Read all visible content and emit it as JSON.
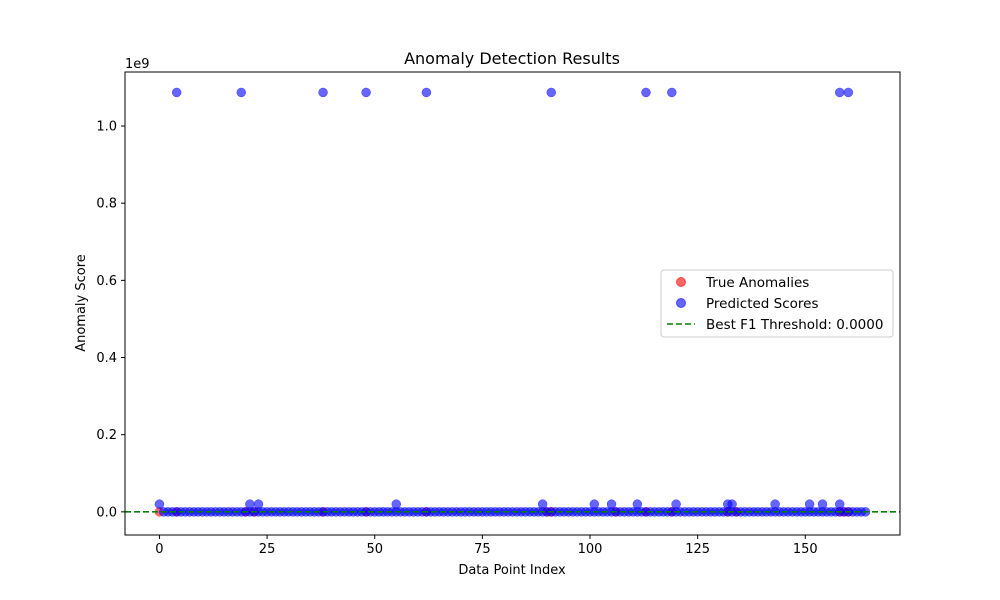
{
  "chart_data": {
    "type": "scatter",
    "title": "Anomaly Detection Results",
    "xlabel": "Data Point Index",
    "ylabel": "Anomaly Score",
    "y_offset_label": "1e9",
    "xlim": [
      -8,
      172
    ],
    "ylim": [
      -60000000,
      1140000000
    ],
    "x_ticks": [
      0,
      25,
      50,
      75,
      100,
      125,
      150
    ],
    "y_ticks": [
      0,
      200000000,
      400000000,
      600000000,
      800000000,
      1000000000
    ],
    "y_tick_labels": [
      "0.0",
      "0.2",
      "0.4",
      "0.6",
      "0.8",
      "1.0"
    ],
    "grid": false,
    "legend_position": "center-right",
    "series": [
      {
        "name": "True Anomalies",
        "color": "#ff0000",
        "marker": "circle",
        "x": [
          0,
          4,
          20,
          22,
          38,
          48,
          62,
          90,
          91,
          106,
          113,
          119,
          132,
          134,
          158,
          159,
          160
        ],
        "y": [
          0,
          0,
          0,
          0,
          0,
          0,
          0,
          0,
          0,
          0,
          0,
          0,
          0,
          0,
          0,
          0,
          0
        ]
      },
      {
        "name": "Predicted Scores",
        "color": "#0000ff",
        "marker": "circle",
        "x": [
          4,
          19,
          38,
          48,
          62,
          91,
          113,
          119,
          158,
          160,
          0,
          21,
          23,
          55,
          89,
          101,
          105,
          111,
          120,
          132,
          133,
          143,
          151,
          154,
          158
        ],
        "y": [
          1087000000,
          1087000000,
          1087000000,
          1087000000,
          1087000000,
          1087000000,
          1087000000,
          1087000000,
          1087000000,
          1087000000,
          20000000,
          20000000,
          20000000,
          20000000,
          20000000,
          20000000,
          20000000,
          20000000,
          20000000,
          20000000,
          20000000,
          20000000,
          20000000,
          20000000,
          20000000
        ],
        "baseline_x_range": [
          1,
          164
        ],
        "baseline_y": 0
      }
    ],
    "threshold": {
      "name": "Best F1 Threshold: 0.0000",
      "value": 0,
      "color": "#008000",
      "style": "dashed"
    }
  }
}
